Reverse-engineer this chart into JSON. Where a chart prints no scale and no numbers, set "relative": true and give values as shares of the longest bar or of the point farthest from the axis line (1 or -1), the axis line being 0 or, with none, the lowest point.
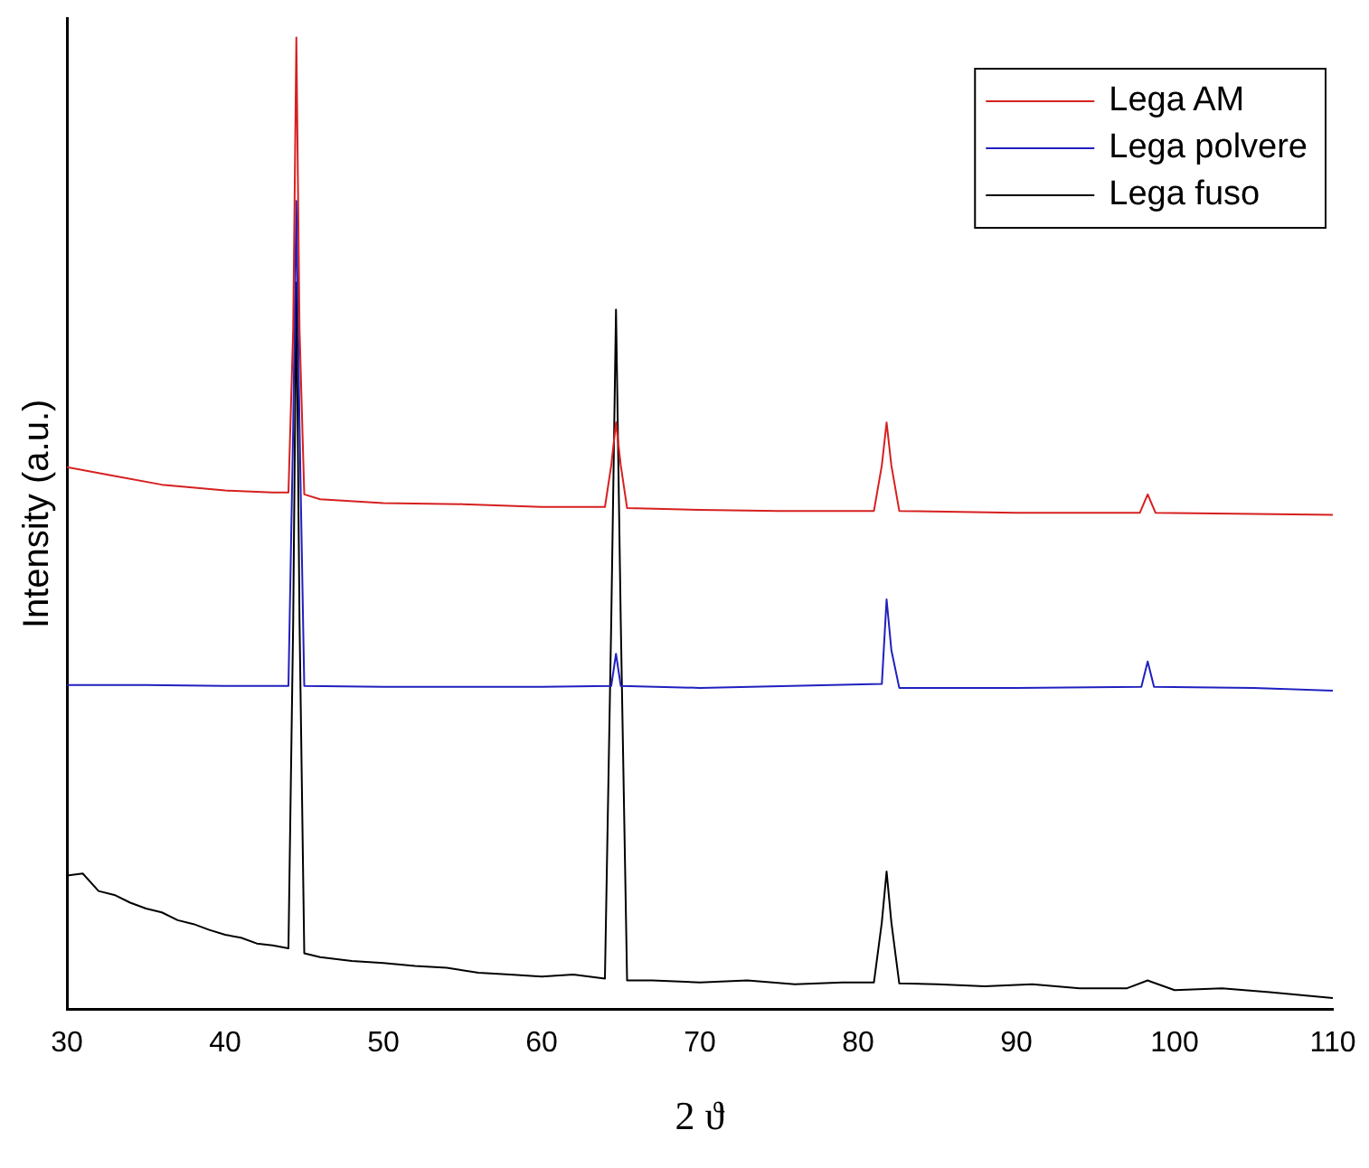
{
  "chart_data": {
    "type": "line",
    "relative": true,
    "xlabel": "2 ϑ",
    "ylabel": "Intensity (a.u.)",
    "xlim": [
      30,
      110
    ],
    "xticks": [
      30,
      40,
      50,
      60,
      70,
      80,
      90,
      100,
      110
    ],
    "grid": false,
    "legend": "top right",
    "marker": "none",
    "line_style": "solid",
    "series": [
      {
        "name": "Lega AM",
        "color": "#d62020",
        "x": [
          30,
          33,
          36,
          40,
          43,
          44,
          44.3,
          44.5,
          44.7,
          45,
          46,
          50,
          55,
          60,
          64,
          64.4,
          64.7,
          65,
          65.4,
          70,
          75,
          81,
          81.5,
          81.8,
          82.1,
          82.6,
          90,
          97.8,
          98.3,
          98.8,
          105,
          110
        ],
        "values": [
          0.558,
          0.549,
          0.54,
          0.534,
          0.532,
          0.532,
          0.7,
          1.0,
          0.7,
          0.53,
          0.525,
          0.521,
          0.52,
          0.517,
          0.517,
          0.56,
          0.604,
          0.56,
          0.516,
          0.514,
          0.513,
          0.513,
          0.56,
          0.604,
          0.56,
          0.513,
          0.511,
          0.511,
          0.53,
          0.511,
          0.51,
          0.509
        ]
      },
      {
        "name": "Lega polvere",
        "color": "#2020c0",
        "x": [
          30,
          35,
          40,
          44,
          44.3,
          44.5,
          44.7,
          45,
          50,
          60,
          64.4,
          64.7,
          65,
          70,
          81.5,
          81.8,
          82.1,
          82.6,
          90,
          97.9,
          98.3,
          98.7,
          105,
          110
        ],
        "values": [
          0.334,
          0.334,
          0.333,
          0.333,
          0.6,
          0.832,
          0.6,
          0.333,
          0.332,
          0.332,
          0.333,
          0.366,
          0.333,
          0.331,
          0.335,
          0.422,
          0.37,
          0.331,
          0.331,
          0.332,
          0.358,
          0.332,
          0.331,
          0.328
        ]
      },
      {
        "name": "Lega fuso",
        "color": "#000000",
        "x": [
          30,
          31,
          32,
          33,
          34,
          35,
          36,
          37,
          38,
          39,
          40,
          41,
          42,
          43,
          44,
          44.3,
          44.5,
          44.7,
          45,
          46,
          48,
          50,
          52,
          54,
          56,
          58,
          60,
          62,
          64,
          64.4,
          64.7,
          65,
          65.4,
          67,
          70,
          73,
          76,
          79,
          81,
          81.5,
          81.8,
          82.1,
          82.6,
          85,
          88,
          91,
          94,
          97,
          98.3,
          100,
          103,
          106,
          110
        ],
        "values": [
          0.138,
          0.14,
          0.122,
          0.118,
          0.11,
          0.104,
          0.1,
          0.092,
          0.088,
          0.082,
          0.077,
          0.074,
          0.068,
          0.066,
          0.063,
          0.4,
          0.748,
          0.4,
          0.058,
          0.054,
          0.05,
          0.048,
          0.045,
          0.043,
          0.038,
          0.036,
          0.034,
          0.036,
          0.032,
          0.4,
          0.72,
          0.4,
          0.03,
          0.03,
          0.028,
          0.03,
          0.026,
          0.028,
          0.028,
          0.09,
          0.142,
          0.09,
          0.027,
          0.026,
          0.024,
          0.026,
          0.022,
          0.022,
          0.03,
          0.02,
          0.022,
          0.018,
          0.012
        ]
      }
    ]
  }
}
